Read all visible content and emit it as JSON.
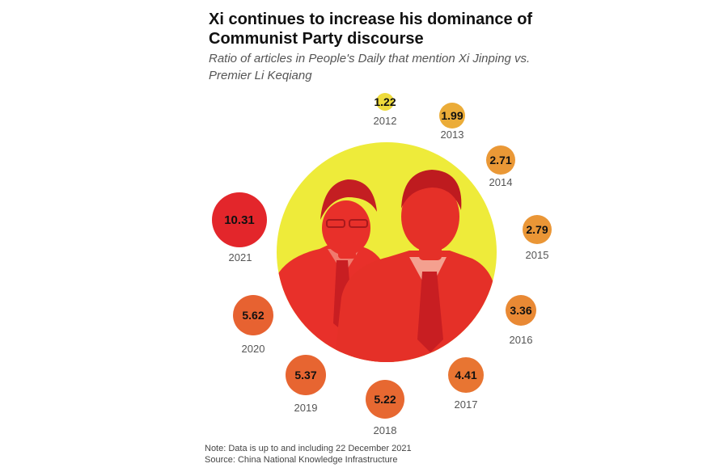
{
  "title": "Xi continues to increase his dominance of Communist Party discourse",
  "subtitle": "Ratio of articles in People's Daily that mention Xi Jinping vs. Premier Li Keqiang",
  "footer": {
    "note": "Note: Data is up to and including 22 December 2021",
    "source": "Source: China National Knowledge Infrastructure"
  },
  "colors": {
    "background_circle": "#eeeb3a",
    "figure_red": "#e8302a",
    "low": "#eedb3c",
    "high": "#e3262b"
  },
  "chart_data": {
    "type": "bubble",
    "title": "Xi continues to increase his dominance of Communist Party discourse",
    "subtitle": "Ratio of articles in People's Daily that mention Xi Jinping vs. Premier Li Keqiang",
    "categories": [
      "2012",
      "2013",
      "2014",
      "2015",
      "2016",
      "2017",
      "2018",
      "2019",
      "2020",
      "2021"
    ],
    "values": [
      1.22,
      1.99,
      2.71,
      2.79,
      3.36,
      4.41,
      5.22,
      5.37,
      5.62,
      10.31
    ],
    "labels": [
      "1.22",
      "1.99",
      "2.71",
      "2.79",
      "3.36",
      "4.41",
      "5.22",
      "5.37",
      "5.62",
      "10.31"
    ],
    "legend": "none"
  }
}
